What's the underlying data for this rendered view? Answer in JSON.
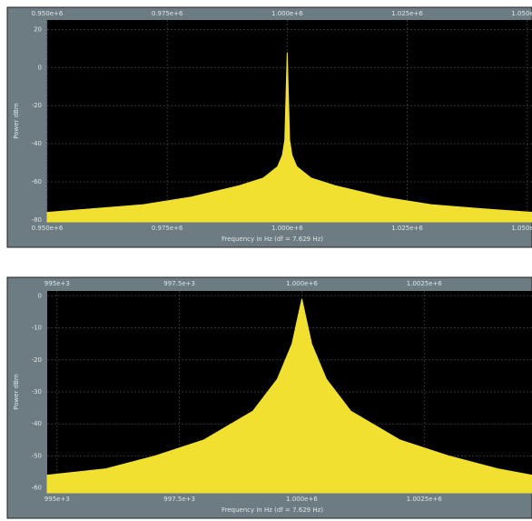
{
  "chart_data": [
    {
      "type": "area",
      "xlabel": "Frequency in Hz (df = 7.629 Hz)",
      "ylabel": "Power dBm",
      "color": "#f2e030",
      "grid": true,
      "xlim": [
        950000,
        1051000
      ],
      "ylim": [
        -81,
        25
      ],
      "xticks": [
        {
          "value": 950000,
          "label": "0.950e+6"
        },
        {
          "value": 975000,
          "label": "0.975e+6"
        },
        {
          "value": 1000000,
          "label": "1.000e+6"
        },
        {
          "value": 1025000,
          "label": "1.025e+6"
        },
        {
          "value": 1050000,
          "label": "1.050e+6"
        }
      ],
      "yticks": [
        20,
        0,
        -20,
        -40,
        -60,
        -80
      ],
      "x": [
        950000,
        960000,
        970000,
        980000,
        990000,
        995000,
        998000,
        999000,
        999500,
        1000000,
        1000500,
        1001000,
        1002000,
        1005000,
        1010000,
        1020000,
        1030000,
        1040000,
        1051000
      ],
      "values": [
        -76,
        -74,
        -72,
        -68,
        -62,
        -58,
        -52,
        -46,
        -38,
        8,
        -38,
        -46,
        -52,
        -58,
        -62,
        -68,
        -72,
        -74,
        -76
      ]
    },
    {
      "type": "area",
      "xlabel": "Frequency in Hz (df = 7.629 Hz)",
      "ylabel": "Power dBm",
      "color": "#f2e030",
      "grid": true,
      "xlim": [
        994800,
        1004700
      ],
      "ylim": [
        -61.5,
        1.5
      ],
      "xticks": [
        {
          "value": 995000,
          "label": "995e+3"
        },
        {
          "value": 997500,
          "label": "997.5e+3"
        },
        {
          "value": 1000000,
          "label": "1.000e+6"
        },
        {
          "value": 1002500,
          "label": "1.0025e+6"
        }
      ],
      "yticks": [
        0,
        -10,
        -20,
        -30,
        -40,
        -50,
        -60
      ],
      "x": [
        994800,
        996000,
        997000,
        998000,
        999000,
        999500,
        999800,
        1000000,
        1000200,
        1000500,
        1001000,
        1002000,
        1003000,
        1004000,
        1004700
      ],
      "values": [
        -56,
        -54,
        -50,
        -45,
        -36,
        -26,
        -15,
        -1,
        -15,
        -26,
        -36,
        -45,
        -50,
        -54,
        -56
      ]
    }
  ]
}
